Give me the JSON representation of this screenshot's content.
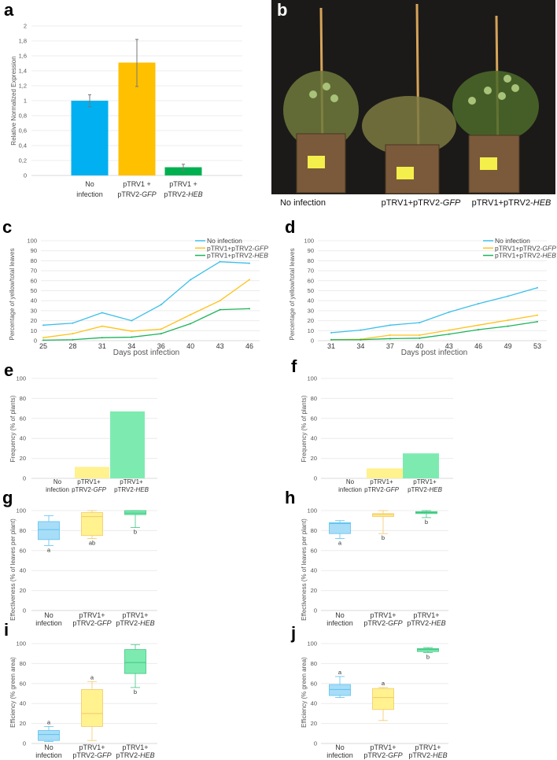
{
  "panel_b": {
    "letter": "b",
    "captions": [
      {
        "text": "No infection"
      },
      {
        "prefix": "pTRV1+pTRV2-",
        "italic": "GFP"
      },
      {
        "prefix": "pTRV1+pTRV2-",
        "italic": "HEB"
      }
    ]
  },
  "chart_data": [
    {
      "id": "a",
      "letter": "a",
      "type": "bar",
      "ylabel": "Relative Normalized Expression",
      "ylim": [
        0,
        2
      ],
      "yticks": [
        0,
        0.2,
        0.4,
        0.6,
        0.8,
        1,
        1.2,
        1.4,
        1.6,
        1.8,
        2
      ],
      "ytick_labels": [
        "0",
        "0,2",
        "0,4",
        "0,6",
        "0,8",
        "1",
        "1,2",
        "1,4",
        "1,6",
        "1,8",
        "2"
      ],
      "categories": [
        {
          "l1": "No",
          "l2": "infection",
          "it": ""
        },
        {
          "l1": "pTRV1 +",
          "l2": "pTRV2-",
          "it": "GFP"
        },
        {
          "l1": "pTRV1 +",
          "l2": "pTRV2-",
          "it": "HEB"
        }
      ],
      "values": [
        1.0,
        1.51,
        0.11
      ],
      "errors_low": [
        0.92,
        1.19,
        0.07
      ],
      "errors_high": [
        1.08,
        1.82,
        0.15
      ],
      "colors": [
        "#00b0f0",
        "#ffc000",
        "#00b050"
      ],
      "grid": true
    },
    {
      "id": "c",
      "letter": "c",
      "type": "line",
      "xlabel": "Days post infection",
      "ylabel": "Percentage of yellow/total leaves",
      "x": [
        25,
        28,
        31,
        34,
        36,
        40,
        43,
        46
      ],
      "ylim": [
        0,
        100
      ],
      "yticks": [
        0,
        10,
        20,
        30,
        40,
        50,
        60,
        70,
        80,
        90,
        100
      ],
      "legend_position": "top-right",
      "series": [
        {
          "name": "No infection",
          "name_italic": "",
          "color": "#3dbfea",
          "values": [
            15.5,
            17.5,
            28,
            20,
            36,
            61,
            79,
            77.5
          ]
        },
        {
          "name": "pTRV1+pTRV2-",
          "name_italic": "GFP",
          "color": "#ffc21a",
          "values": [
            3,
            7,
            14.5,
            9.5,
            11.5,
            26,
            40,
            61
          ]
        },
        {
          "name": "pTRV1+pTRV2-",
          "name_italic": "HEB",
          "color": "#1db35a",
          "values": [
            0.5,
            1,
            3,
            3.5,
            7,
            17,
            31,
            32
          ]
        }
      ],
      "grid": true
    },
    {
      "id": "d",
      "letter": "d",
      "type": "line",
      "xlabel": "Days post infection",
      "ylabel": "Percentage of yellow/total leaves",
      "x": [
        31,
        34,
        37,
        40,
        43,
        46,
        49,
        53
      ],
      "ylim": [
        0,
        100
      ],
      "yticks": [
        0,
        10,
        20,
        30,
        40,
        50,
        60,
        70,
        80,
        90,
        100
      ],
      "legend_position": "top-right",
      "series": [
        {
          "name": "No infection",
          "name_italic": "",
          "color": "#3dbfea",
          "values": [
            8,
            10.5,
            15.5,
            18,
            28.5,
            37,
            44.5,
            53
          ]
        },
        {
          "name": "pTRV1+pTRV2-",
          "name_italic": "GFP",
          "color": "#ffc21a",
          "values": [
            1,
            1.5,
            5.5,
            5.5,
            10.5,
            15.5,
            20.5,
            25.5
          ]
        },
        {
          "name": "pTRV1+pTRV2-",
          "name_italic": "HEB",
          "color": "#1db35a",
          "values": [
            1,
            1,
            2,
            2.5,
            6.5,
            11,
            14.5,
            19
          ]
        }
      ],
      "grid": true
    },
    {
      "id": "e",
      "letter": "e",
      "type": "bar",
      "ylabel": "Frequency (% of plants)",
      "ylim": [
        0,
        100
      ],
      "yticks": [
        0,
        20,
        40,
        60,
        80,
        100
      ],
      "categories": [
        {
          "l1": "No",
          "l2": "infection",
          "it": ""
        },
        {
          "l1": "pTRV1+",
          "l2": "pTRV2-",
          "it": "GFP"
        },
        {
          "l1": "pTRV1+",
          "l2": "pTRV2-",
          "it": "HEB"
        }
      ],
      "values": [
        0,
        11.5,
        67
      ],
      "colors": [
        "#a8ddf7",
        "#fff28f",
        "#7debb0"
      ],
      "grid": true
    },
    {
      "id": "f",
      "letter": "f",
      "type": "bar",
      "ylabel": "Frequency (% of plants)",
      "ylim": [
        0,
        100
      ],
      "yticks": [
        0,
        20,
        40,
        60,
        80,
        100
      ],
      "categories": [
        {
          "l1": "No",
          "l2": "infection",
          "it": ""
        },
        {
          "l1": "pTRV1+",
          "l2": "pTRV2-",
          "it": "GFP"
        },
        {
          "l1": "pTRV1+",
          "l2": "pTRV2-",
          "it": "HEB"
        }
      ],
      "values": [
        0,
        10,
        25
      ],
      "colors": [
        "#a8ddf7",
        "#fff28f",
        "#7debb0"
      ],
      "grid": true
    },
    {
      "id": "g",
      "letter": "g",
      "type": "box",
      "ylabel": "Effectiveness (% of leaves per plant)",
      "ylim": [
        0,
        100
      ],
      "yticks": [
        0,
        20,
        40,
        60,
        80,
        100
      ],
      "categories": [
        {
          "l1": "No",
          "l2": "infection",
          "it": ""
        },
        {
          "l1": "pTRV1+",
          "l2": "pTRV2-",
          "it": "GFP"
        },
        {
          "l1": "pTRV1+",
          "l2": "pTRV2-",
          "it": "HEB"
        }
      ],
      "boxes": [
        {
          "min": 65,
          "q1": 71,
          "median": 81,
          "q3": 89,
          "max": 95,
          "letter": "a",
          "letter_side": "below"
        },
        {
          "min": 72,
          "q1": 75,
          "median": 94,
          "q3": 98,
          "max": 100,
          "letter": "ab",
          "letter_side": "below"
        },
        {
          "min": 83,
          "q1": 96,
          "median": 97.5,
          "q3": 100,
          "max": 100,
          "letter": "b",
          "letter_side": "below"
        }
      ],
      "grid": true
    },
    {
      "id": "h",
      "letter": "h",
      "type": "box",
      "ylabel": "Effectiveness (% of leaves per plant)",
      "ylim": [
        0,
        100
      ],
      "yticks": [
        0,
        20,
        40,
        60,
        80,
        100
      ],
      "categories": [
        {
          "l1": "No",
          "l2": "infection",
          "it": ""
        },
        {
          "l1": "pTRV1+",
          "l2": "pTRV2-",
          "it": "GFP"
        },
        {
          "l1": "pTRV1+",
          "l2": "pTRV2-",
          "it": "HEB"
        }
      ],
      "boxes": [
        {
          "min": 72,
          "q1": 77,
          "median": 87,
          "q3": 88,
          "max": 90,
          "letter": "a",
          "letter_side": "below"
        },
        {
          "min": 77,
          "q1": 94,
          "median": 96,
          "q3": 97,
          "max": 100,
          "letter": "b",
          "letter_side": "below"
        },
        {
          "min": 93,
          "q1": 97,
          "median": 98,
          "q3": 99,
          "max": 100,
          "letter": "b",
          "letter_side": "below"
        }
      ],
      "grid": true
    },
    {
      "id": "i",
      "letter": "i",
      "type": "box",
      "ylabel": "Efficiency (% green area)",
      "ylim": [
        0,
        100
      ],
      "yticks": [
        0,
        20,
        40,
        60,
        80,
        100
      ],
      "categories": [
        {
          "l1": "No",
          "l2": "infection",
          "it": ""
        },
        {
          "l1": "pTRV1+",
          "l2": "pTRV2-",
          "it": "GFP"
        },
        {
          "l1": "pTRV1+",
          "l2": "pTRV2-",
          "it": "HEB"
        }
      ],
      "boxes": [
        {
          "min": 2,
          "q1": 3,
          "median": 9,
          "q3": 13,
          "max": 17,
          "letter": "a",
          "letter_side": "above"
        },
        {
          "min": 3,
          "q1": 17,
          "median": 30,
          "q3": 54,
          "max": 62,
          "letter": "a",
          "letter_side": "above"
        },
        {
          "min": 56,
          "q1": 70,
          "median": 81,
          "q3": 94,
          "max": 99,
          "letter": "b",
          "letter_side": "below"
        }
      ],
      "grid": true
    },
    {
      "id": "j",
      "letter": "j",
      "type": "box",
      "ylabel": "Efficiency (% green area)",
      "ylim": [
        0,
        100
      ],
      "yticks": [
        0,
        20,
        40,
        60,
        80,
        100
      ],
      "categories": [
        {
          "l1": "No",
          "l2": "infection",
          "it": ""
        },
        {
          "l1": "pTRV1+",
          "l2": "pTRV2-",
          "it": "GFP"
        },
        {
          "l1": "pTRV1+",
          "l2": "pTRV2-",
          "it": "HEB"
        }
      ],
      "boxes": [
        {
          "min": 46,
          "q1": 48,
          "median": 54,
          "q3": 59,
          "max": 67,
          "letter": "a",
          "letter_side": "above"
        },
        {
          "min": 23,
          "q1": 34,
          "median": 46,
          "q3": 55,
          "max": 56,
          "letter": "a",
          "letter_side": "above"
        },
        {
          "min": 91,
          "q1": 92,
          "median": 94,
          "q3": 95,
          "max": 96,
          "letter": "b",
          "letter_side": "below"
        }
      ],
      "grid": true
    }
  ]
}
